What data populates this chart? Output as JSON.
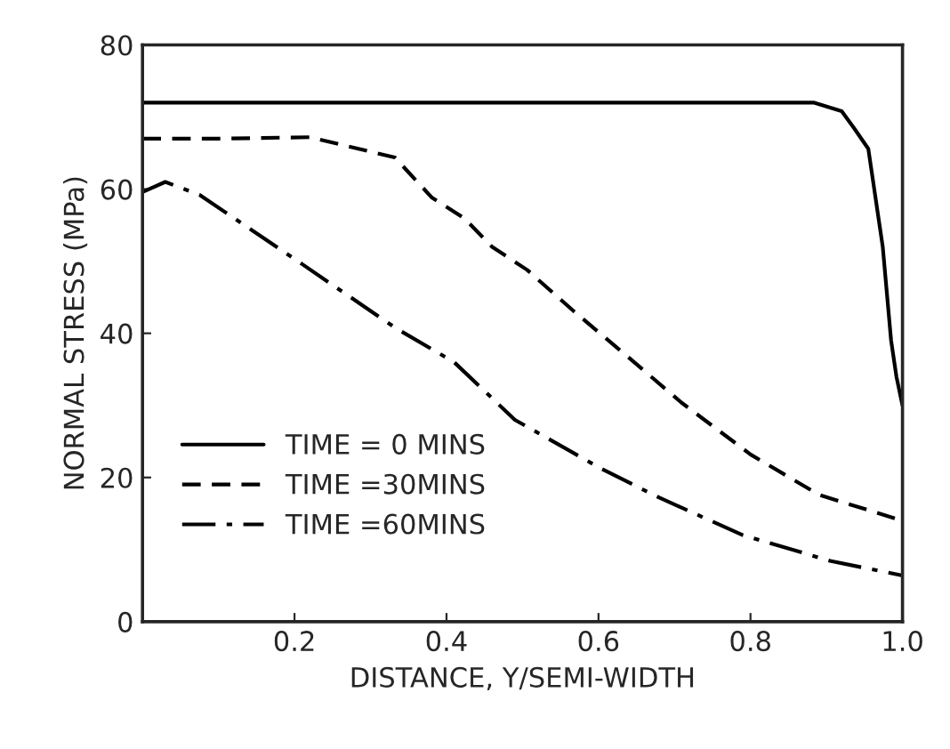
{
  "chart_data": {
    "type": "line",
    "xlabel": "DISTANCE, Y/SEMI-WIDTH",
    "ylabel": "NORMAL STRESS (MPa)",
    "xlim": [
      0,
      1
    ],
    "ylim": [
      0,
      80
    ],
    "xticks": [
      0.2,
      0.4,
      0.6,
      0.8,
      {
        "value": 1,
        "label": "1.0"
      }
    ],
    "yticks": [
      0,
      20,
      40,
      60,
      80
    ],
    "grid": false,
    "legend": "lower left",
    "series": [
      {
        "name": "TIME = 0 MINS",
        "color": "#000000",
        "line_style": "solid",
        "x": [
          0,
          0.3,
          0.6,
          0.883,
          0.92,
          0.936,
          0.955,
          0.974,
          0.985,
          0.992,
          1.0
        ],
        "values": [
          72,
          72,
          72,
          72,
          70.8,
          68.5,
          65.6,
          52,
          39,
          34,
          30
        ]
      },
      {
        "name": "TIME =30MINS",
        "color": "#000000",
        "line_style": "dashed",
        "x": [
          0,
          0.1,
          0.22,
          0.332,
          0.381,
          0.423,
          0.46,
          0.506,
          0.566,
          0.638,
          0.709,
          0.8,
          0.89,
          1.0
        ],
        "values": [
          67,
          67,
          67.2,
          64.4,
          58.8,
          56,
          52,
          48.8,
          43.2,
          36.8,
          30.4,
          23.2,
          17.6,
          14
        ]
      },
      {
        "name": "TIME =60MINS",
        "color": "#000000",
        "line_style": "dashdot",
        "x": [
          0,
          0.03,
          0.075,
          0.12,
          0.21,
          0.332,
          0.41,
          0.49,
          0.604,
          0.68,
          0.79,
          0.906,
          1.0
        ],
        "values": [
          59.6,
          61,
          59.2,
          56,
          49.6,
          40.8,
          36,
          28,
          21.2,
          17.2,
          12,
          8.4,
          6.4
        ]
      }
    ]
  }
}
